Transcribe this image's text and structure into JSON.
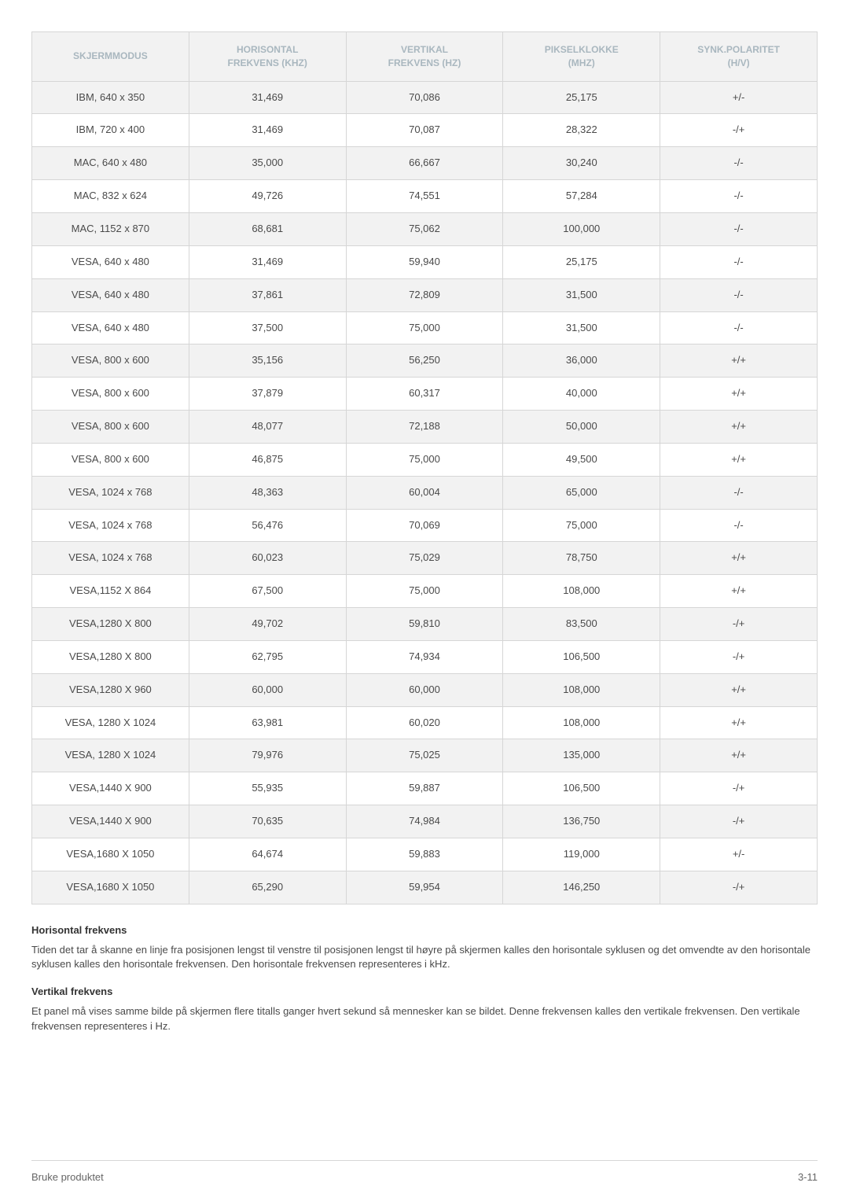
{
  "table": {
    "columns": [
      {
        "label": "SKJERMMODUS",
        "width": "20%"
      },
      {
        "label": "HORISONTAL\nFREKVENS (KHZ)",
        "width": "20%"
      },
      {
        "label": "VERTIKAL\nFREKVENS (HZ)",
        "width": "20%"
      },
      {
        "label": "PIKSELKLOKKE\n(MHZ)",
        "width": "20%"
      },
      {
        "label": "SYNK.POLARITET\n(H/V)",
        "width": "20%"
      }
    ],
    "rows": [
      [
        "IBM, 640 x 350",
        "31,469",
        "70,086",
        "25,175",
        "+/-"
      ],
      [
        "IBM, 720 x 400",
        "31,469",
        "70,087",
        "28,322",
        "-/+"
      ],
      [
        "MAC, 640 x 480",
        "35,000",
        "66,667",
        "30,240",
        "-/-"
      ],
      [
        "MAC, 832 x 624",
        "49,726",
        "74,551",
        "57,284",
        "-/-"
      ],
      [
        "MAC, 1152 x 870",
        "68,681",
        "75,062",
        "100,000",
        "-/-"
      ],
      [
        "VESA, 640 x 480",
        "31,469",
        "59,940",
        "25,175",
        "-/-"
      ],
      [
        "VESA, 640 x 480",
        "37,861",
        "72,809",
        "31,500",
        "-/-"
      ],
      [
        "VESA, 640 x 480",
        "37,500",
        "75,000",
        "31,500",
        "-/-"
      ],
      [
        "VESA, 800 x 600",
        "35,156",
        "56,250",
        "36,000",
        "+/+"
      ],
      [
        "VESA, 800 x 600",
        "37,879",
        "60,317",
        "40,000",
        "+/+"
      ],
      [
        "VESA, 800 x 600",
        "48,077",
        "72,188",
        "50,000",
        "+/+"
      ],
      [
        "VESA, 800 x 600",
        "46,875",
        "75,000",
        "49,500",
        "+/+"
      ],
      [
        "VESA, 1024 x 768",
        "48,363",
        "60,004",
        "65,000",
        "-/-"
      ],
      [
        "VESA, 1024 x 768",
        "56,476",
        "70,069",
        "75,000",
        "-/-"
      ],
      [
        "VESA, 1024 x 768",
        "60,023",
        "75,029",
        "78,750",
        "+/+"
      ],
      [
        "VESA,1152 X 864",
        "67,500",
        "75,000",
        "108,000",
        "+/+"
      ],
      [
        "VESA,1280 X 800",
        "49,702",
        "59,810",
        "83,500",
        "-/+"
      ],
      [
        "VESA,1280 X 800",
        "62,795",
        "74,934",
        "106,500",
        "-/+"
      ],
      [
        "VESA,1280 X 960",
        "60,000",
        "60,000",
        "108,000",
        "+/+"
      ],
      [
        "VESA, 1280 X 1024",
        "63,981",
        "60,020",
        "108,000",
        "+/+"
      ],
      [
        "VESA, 1280 X 1024",
        "79,976",
        "75,025",
        "135,000",
        "+/+"
      ],
      [
        "VESA,1440 X 900",
        "55,935",
        "59,887",
        "106,500",
        "-/+"
      ],
      [
        "VESA,1440 X 900",
        "70,635",
        "74,984",
        "136,750",
        "-/+"
      ],
      [
        "VESA,1680 X 1050",
        "64,674",
        "59,883",
        "119,000",
        "+/-"
      ],
      [
        "VESA,1680 X 1050",
        "65,290",
        "59,954",
        "146,250",
        "-/+"
      ]
    ],
    "header_text_color": "#a9b7bf",
    "header_bg": "#f2f2f2",
    "row_odd_bg": "#f2f2f2",
    "row_even_bg": "#ffffff",
    "border_color": "#d6d6d6",
    "cell_fontsize": 13,
    "header_fontsize": 12
  },
  "sections": [
    {
      "heading": "Horisontal frekvens",
      "body": "Tiden det tar å skanne en linje fra posisjonen lengst til venstre til posisjonen lengst til høyre på skjermen kalles den horisontale syklusen og det omvendte av den horisontale syklusen kalles den horisontale frekvensen. Den horisontale frekvensen representeres i kHz."
    },
    {
      "heading": "Vertikal frekvens",
      "body": "Et panel må vises samme bilde på skjermen flere titalls ganger hvert sekund så mennesker kan se bildet. Denne frekvensen kalles den vertikale frekvensen. Den vertikale frekvensen representeres i Hz."
    }
  ],
  "footer": {
    "left": "Bruke produktet",
    "right": "3-11"
  }
}
